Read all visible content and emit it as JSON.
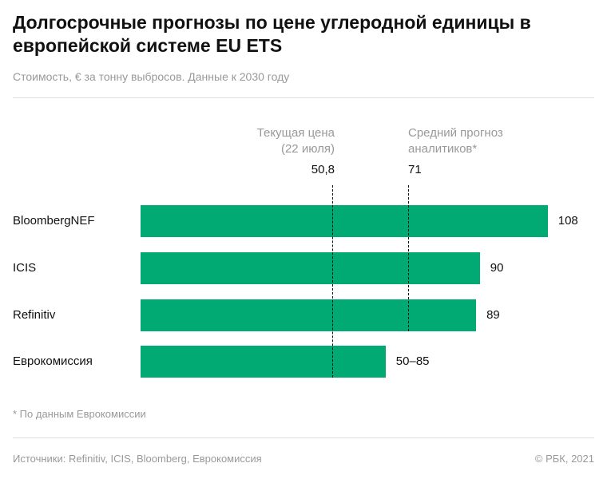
{
  "title": "Долгосрочные прогнозы по цене углеродной единицы в европейской системе EU ETS",
  "subtitle": "Стоимость, € за тонну выбросов. Данные к 2030 году",
  "chart_data": {
    "type": "bar",
    "orientation": "horizontal",
    "colors": {
      "bar": "#00aa72"
    },
    "categories": [
      "BloombergNEF",
      "ICIS",
      "Refinitiv",
      "Еврокомиссия"
    ],
    "bars": [
      {
        "label": "BloombergNEF",
        "value": 108,
        "value_label": "108"
      },
      {
        "label": "ICIS",
        "value": 90,
        "value_label": "90"
      },
      {
        "label": "Refinitiv",
        "value": 89,
        "value_label": "89"
      },
      {
        "label": "Еврокомиссия",
        "range": [
          50,
          85
        ],
        "bar_value": 65,
        "value_label": "50–85"
      }
    ],
    "reference_lines": [
      {
        "label_line1": "Текущая цена",
        "label_line2": "(22 июля)",
        "value": 50.8,
        "value_label": "50,8",
        "align": "right"
      },
      {
        "label_line1": "Средний прогноз",
        "label_line2": "аналитиков*",
        "value": 71,
        "value_label": "71",
        "align": "left"
      }
    ],
    "grid": false
  },
  "footnote": "* По данным Еврокомиссии",
  "sources": "Источники: Refinitiv, ICIS, Bloomberg, Еврокомиссия",
  "copyright": "© РБК, 2021"
}
